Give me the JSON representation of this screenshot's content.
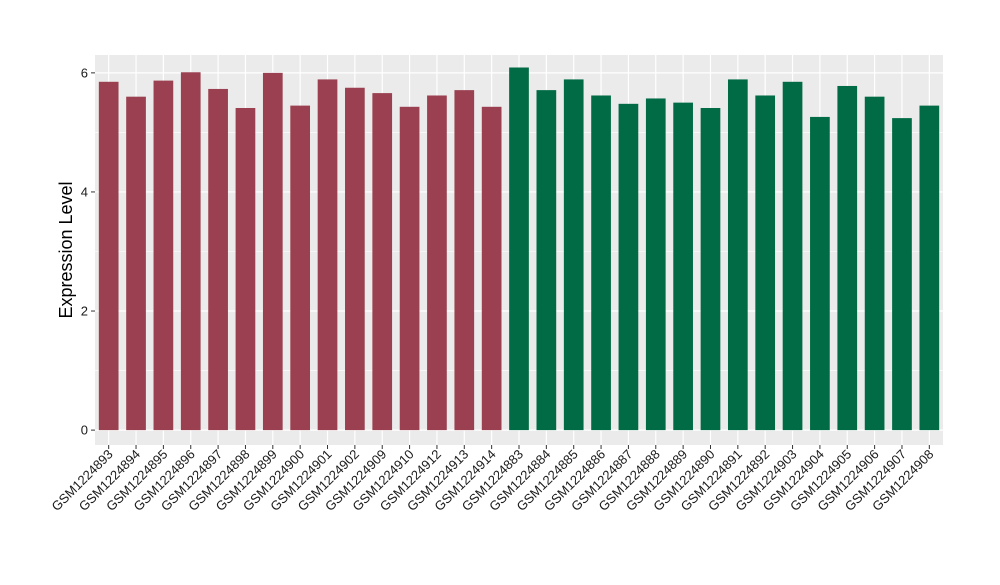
{
  "chart_data": {
    "type": "bar",
    "title": "",
    "xlabel": "",
    "ylabel": "Expression Level",
    "ylim": [
      -0.25,
      6.3
    ],
    "yticks": [
      0,
      2,
      4,
      6
    ],
    "grid": true,
    "legend": "none",
    "background_color": "#ebebeb",
    "gridline_color": "#ffffff",
    "categories": [
      "GSM1224893",
      "GSM1224894",
      "GSM1224895",
      "GSM1224896",
      "GSM1224897",
      "GSM1224898",
      "GSM1224899",
      "GSM1224900",
      "GSM1224901",
      "GSM1224902",
      "GSM1224909",
      "GSM1224910",
      "GSM1224912",
      "GSM1224913",
      "GSM1224914",
      "GSM1224883",
      "GSM1224884",
      "GSM1224885",
      "GSM1224886",
      "GSM1224887",
      "GSM1224888",
      "GSM1224889",
      "GSM1224890",
      "GSM1224891",
      "GSM1224892",
      "GSM1224903",
      "GSM1224904",
      "GSM1224905",
      "GSM1224906",
      "GSM1224907",
      "GSM1224908"
    ],
    "values": [
      5.85,
      5.6,
      5.87,
      6.01,
      5.73,
      5.41,
      6.0,
      5.45,
      5.89,
      5.75,
      5.66,
      5.43,
      5.62,
      5.71,
      5.43,
      6.09,
      5.71,
      5.89,
      5.62,
      5.48,
      5.57,
      5.5,
      5.41,
      5.89,
      5.62,
      5.85,
      5.26,
      5.78,
      5.6,
      5.24,
      5.45
    ],
    "group_colors": [
      "#9b4050",
      "#9b4050",
      "#9b4050",
      "#9b4050",
      "#9b4050",
      "#9b4050",
      "#9b4050",
      "#9b4050",
      "#9b4050",
      "#9b4050",
      "#9b4050",
      "#9b4050",
      "#9b4050",
      "#9b4050",
      "#9b4050",
      "#006b44",
      "#006b44",
      "#006b44",
      "#006b44",
      "#006b44",
      "#006b44",
      "#006b44",
      "#006b44",
      "#006b44",
      "#006b44",
      "#006b44",
      "#006b44",
      "#006b44",
      "#006b44",
      "#006b44",
      "#006b44"
    ]
  }
}
